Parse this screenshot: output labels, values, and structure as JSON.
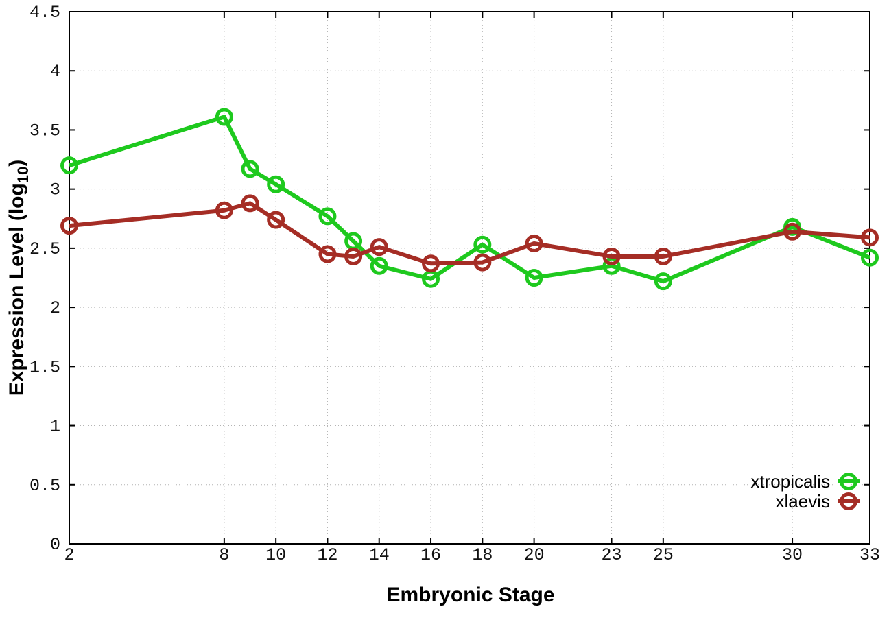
{
  "figure": {
    "background": "#ffffff"
  },
  "chart_data": {
    "type": "line",
    "title": "",
    "xlabel": "Embryonic Stage",
    "ylabel": "Expression Level (log10)",
    "ylabel_parts": {
      "main": "Expression Level (log",
      "sub": "10",
      "close": ")"
    },
    "x": [
      2,
      8,
      9,
      10,
      12,
      13,
      14,
      16,
      18,
      20,
      23,
      25,
      30,
      33
    ],
    "xticks": [
      2,
      8,
      10,
      12,
      14,
      16,
      18,
      20,
      23,
      25,
      30,
      33
    ],
    "yticks": [
      0,
      0.5,
      1,
      1.5,
      2,
      2.5,
      3,
      3.5,
      4,
      4.5
    ],
    "xlim": [
      2,
      33
    ],
    "ylim": [
      0,
      4.5
    ],
    "grid": true,
    "grid_style": "dotted",
    "legend_position": "inside-bottom-right",
    "series": [
      {
        "name": "xtropicalis",
        "color": "#1ec91e",
        "marker": "open-circle",
        "values": [
          3.2,
          3.61,
          3.17,
          3.04,
          2.77,
          2.56,
          2.35,
          2.24,
          2.53,
          2.25,
          2.35,
          2.22,
          2.68,
          2.42
        ]
      },
      {
        "name": "xlaevis",
        "color": "#a52d25",
        "marker": "open-circle",
        "values": [
          2.69,
          2.82,
          2.88,
          2.74,
          2.45,
          2.43,
          2.51,
          2.37,
          2.38,
          2.54,
          2.43,
          2.43,
          2.64,
          2.59
        ]
      }
    ]
  }
}
